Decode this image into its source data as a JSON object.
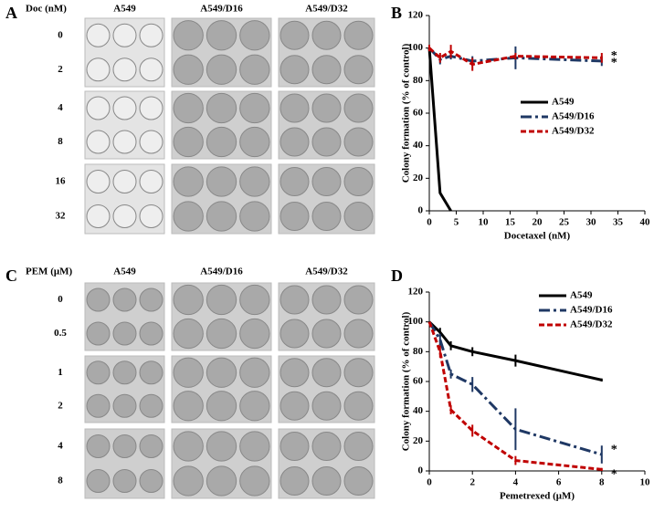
{
  "panels": [
    {
      "letter": "A",
      "header": "Doc (nM)",
      "columns": [
        "A549",
        "A549/D16",
        "A549/D32"
      ],
      "rows": [
        "0",
        "2",
        "4",
        "8",
        "16",
        "32"
      ]
    },
    {
      "letter": "C",
      "header": "PEM (μM)",
      "columns": [
        "A549",
        "A549/D16",
        "A549/D32"
      ],
      "rows": [
        "0",
        "0.5",
        "1",
        "2",
        "4",
        "8"
      ]
    }
  ],
  "chart_data": [
    {
      "type": "line",
      "panel_label": "B",
      "x_label": "Docetaxel (nM)",
      "y_label": "Colony formation (% of control)",
      "xlim": [
        0,
        40
      ],
      "xticks": [
        0,
        5,
        10,
        15,
        20,
        25,
        30,
        35,
        40
      ],
      "ylim": [
        0,
        120
      ],
      "yticks": [
        0,
        20,
        40,
        60,
        80,
        100,
        120
      ],
      "legend": "center-right",
      "annotations": [
        "*",
        "*"
      ],
      "series": [
        {
          "name": "A549",
          "color": "#000000",
          "x": [
            0,
            2,
            4
          ],
          "values": [
            100,
            11,
            0
          ],
          "errors": [
            0,
            0,
            0
          ]
        },
        {
          "name": "A549/D16",
          "color": "#1f3864",
          "x": [
            0,
            2,
            4,
            8,
            16,
            32
          ],
          "values": [
            100,
            93,
            95,
            92,
            94,
            92
          ],
          "errors": [
            2,
            3,
            2,
            3,
            7,
            3
          ]
        },
        {
          "name": "A549/D32",
          "color": "#c00000",
          "x": [
            0,
            2,
            4,
            8,
            16,
            32
          ],
          "values": [
            100,
            94,
            98,
            90,
            95,
            94
          ],
          "errors": [
            2,
            3,
            4,
            4,
            2,
            3
          ]
        }
      ]
    },
    {
      "type": "line",
      "panel_label": "D",
      "x_label": "Pemetrexed (μM)",
      "y_label": "Colony formation (% of control)",
      "xlim": [
        0,
        10
      ],
      "xticks": [
        0,
        2,
        4,
        6,
        8,
        10
      ],
      "ylim": [
        0,
        120
      ],
      "yticks": [
        0,
        20,
        40,
        60,
        80,
        100,
        120
      ],
      "legend": "upper-right",
      "annotations": [
        "*",
        "*"
      ],
      "series": [
        {
          "name": "A549",
          "color": "#000000",
          "x": [
            0,
            0.5,
            1,
            2,
            4,
            8
          ],
          "values": [
            100,
            93,
            84,
            80,
            74,
            61
          ],
          "errors": [
            0,
            3,
            3,
            3,
            4,
            1
          ]
        },
        {
          "name": "A549/D16",
          "color": "#1f3864",
          "x": [
            0,
            0.5,
            1,
            2,
            4,
            8
          ],
          "values": [
            100,
            88,
            65,
            58,
            28,
            11
          ],
          "errors": [
            0,
            4,
            3,
            5,
            14,
            6
          ]
        },
        {
          "name": "A549/D32",
          "color": "#c00000",
          "x": [
            0,
            0.5,
            1,
            2,
            4,
            8
          ],
          "values": [
            100,
            80,
            41,
            27,
            7,
            1
          ],
          "errors": [
            0,
            4,
            3,
            4,
            3,
            1
          ]
        }
      ]
    }
  ]
}
